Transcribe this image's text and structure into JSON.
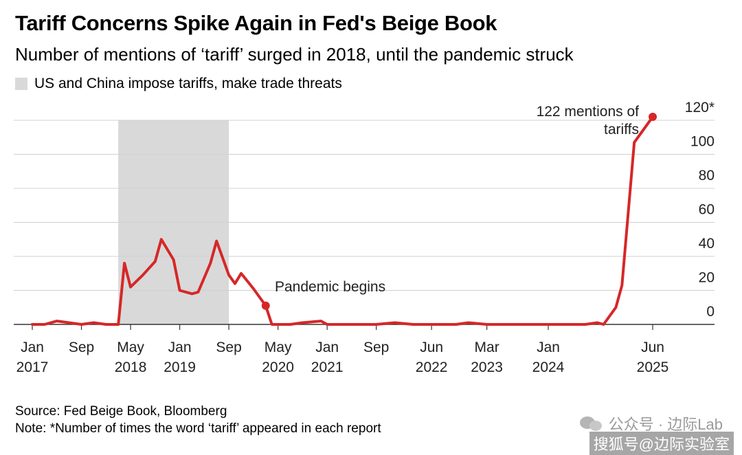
{
  "title": "Tariff Concerns Spike Again in Fed's Beige Book",
  "subtitle": "Number of mentions of ‘tariff’ surged in 2018, until the pandemic struck",
  "legend": {
    "shade_label": "US and China impose tariffs, make trade threats",
    "shade_color": "#d9d9d9"
  },
  "footer": {
    "source": "Source: Fed Beige Book, Bloomberg",
    "note": "Note: *Number of times the word ‘tariff’ appeared in each report"
  },
  "watermark": {
    "text": "公众号 · 边际Lab",
    "credit": "搜狐号@边际实验室"
  },
  "chart_data": {
    "type": "line",
    "title": "Tariff Concerns Spike Again in Fed's Beige Book",
    "subtitle": "Number of mentions of ‘tariff’ surged in 2018, until the pandemic struck",
    "line_color": "#d62728",
    "ylim": [
      0,
      120
    ],
    "y_ticks": [
      {
        "value": 0,
        "label": "0"
      },
      {
        "value": 20,
        "label": "20"
      },
      {
        "value": 40,
        "label": "40"
      },
      {
        "value": 60,
        "label": "60"
      },
      {
        "value": 80,
        "label": "80"
      },
      {
        "value": 100,
        "label": "100"
      },
      {
        "value": 120,
        "label": "120*"
      }
    ],
    "x_ticks": [
      {
        "date": "2017-01",
        "month": "Jan",
        "year": "2017"
      },
      {
        "date": "2017-09",
        "month": "Sep",
        "year": ""
      },
      {
        "date": "2018-05",
        "month": "May",
        "year": "2018"
      },
      {
        "date": "2019-01",
        "month": "Jan",
        "year": "2019"
      },
      {
        "date": "2019-09",
        "month": "Sep",
        "year": ""
      },
      {
        "date": "2020-05",
        "month": "May",
        "year": "2020"
      },
      {
        "date": "2021-01",
        "month": "Jan",
        "year": "2021"
      },
      {
        "date": "2021-09",
        "month": "Sep",
        "year": ""
      },
      {
        "date": "2022-06",
        "month": "Jun",
        "year": "2022"
      },
      {
        "date": "2023-03",
        "month": "Mar",
        "year": "2023"
      },
      {
        "date": "2024-01",
        "month": "Jan",
        "year": "2024"
      },
      {
        "date": "2025-06",
        "month": "Jun",
        "year": "2025"
      }
    ],
    "shaded_region": {
      "start": "2018-03",
      "end": "2019-09",
      "label": "US and China impose tariffs, make trade threats"
    },
    "series": [
      {
        "values": [
          {
            "x": "2017-01",
            "y": 0
          },
          {
            "x": "2017-03",
            "y": 0
          },
          {
            "x": "2017-05",
            "y": 2
          },
          {
            "x": "2017-07",
            "y": 1
          },
          {
            "x": "2017-09",
            "y": 0
          },
          {
            "x": "2017-11",
            "y": 1
          },
          {
            "x": "2018-01",
            "y": 0
          },
          {
            "x": "2018-03",
            "y": 0
          },
          {
            "x": "2018-04",
            "y": 36
          },
          {
            "x": "2018-05",
            "y": 22
          },
          {
            "x": "2018-07",
            "y": 29
          },
          {
            "x": "2018-09",
            "y": 37
          },
          {
            "x": "2018-10",
            "y": 50
          },
          {
            "x": "2018-12",
            "y": 38
          },
          {
            "x": "2019-01",
            "y": 20
          },
          {
            "x": "2019-03",
            "y": 18
          },
          {
            "x": "2019-04",
            "y": 19
          },
          {
            "x": "2019-06",
            "y": 36
          },
          {
            "x": "2019-07",
            "y": 49
          },
          {
            "x": "2019-09",
            "y": 29
          },
          {
            "x": "2019-10",
            "y": 24
          },
          {
            "x": "2019-11",
            "y": 30
          },
          {
            "x": "2020-01",
            "y": 21
          },
          {
            "x": "2020-03",
            "y": 11
          },
          {
            "x": "2020-04",
            "y": 0
          },
          {
            "x": "2020-07",
            "y": 0
          },
          {
            "x": "2020-09",
            "y": 1
          },
          {
            "x": "2020-12",
            "y": 2
          },
          {
            "x": "2021-01",
            "y": 0
          },
          {
            "x": "2021-06",
            "y": 0
          },
          {
            "x": "2021-09",
            "y": 0
          },
          {
            "x": "2021-12",
            "y": 1
          },
          {
            "x": "2022-03",
            "y": 0
          },
          {
            "x": "2022-06",
            "y": 0
          },
          {
            "x": "2022-10",
            "y": 0
          },
          {
            "x": "2022-12",
            "y": 1
          },
          {
            "x": "2023-03",
            "y": 0
          },
          {
            "x": "2023-06",
            "y": 0
          },
          {
            "x": "2023-10",
            "y": 0
          },
          {
            "x": "2024-01",
            "y": 0
          },
          {
            "x": "2024-04",
            "y": 0
          },
          {
            "x": "2024-07",
            "y": 0
          },
          {
            "x": "2024-09",
            "y": 1
          },
          {
            "x": "2024-10",
            "y": 0
          },
          {
            "x": "2024-12",
            "y": 10
          },
          {
            "x": "2025-01",
            "y": 23
          },
          {
            "x": "2025-03",
            "y": 107
          },
          {
            "x": "2025-06",
            "y": 122
          }
        ]
      }
    ],
    "annotations": [
      {
        "x": "2020-03",
        "y": 11,
        "lines": [
          "Pandemic begins"
        ]
      },
      {
        "x": "2025-06",
        "y": 122,
        "lines": [
          "122 mentions of",
          "tariffs"
        ]
      }
    ]
  }
}
